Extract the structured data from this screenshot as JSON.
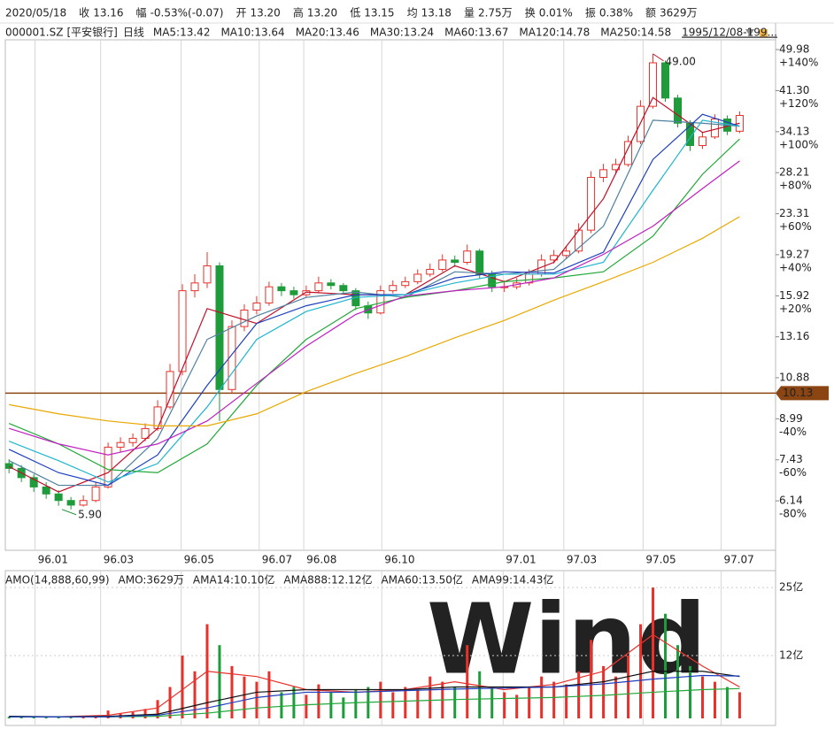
{
  "info_bar": [
    {
      "label": "2020/05/18"
    },
    {
      "label": "收",
      "value": "13.16",
      "color": "#138a2e"
    },
    {
      "label": "幅",
      "value": "-0.53%(-0.07)",
      "color": "#138a2e"
    },
    {
      "label": "开",
      "value": "13.20",
      "color": "#138a2e"
    },
    {
      "label": "高",
      "value": "13.20",
      "color": "#138a2e"
    },
    {
      "label": "低",
      "value": "13.15",
      "color": "#138a2e"
    },
    {
      "label": "均",
      "value": "13.18",
      "color": "#138a2e"
    },
    {
      "label": "量",
      "value": "2.75万",
      "color": "#222222"
    },
    {
      "label": "换",
      "value": "0.01%",
      "color": "#222222"
    },
    {
      "label": "振",
      "value": "0.38%",
      "color": "#222222"
    },
    {
      "label": "额",
      "value": "3629万",
      "color": "#222222"
    }
  ],
  "symbol": "000001.SZ",
  "security_name": "[平安银行]",
  "period": "日线",
  "date_range": "1995/12/08-199...",
  "chart_data": [
    {
      "type": "candlestick",
      "log_y": true,
      "xlim": [
        -0.3,
        61.9
      ],
      "ylim": [
        4.88,
        52.3
      ],
      "up_color": "#e8312b",
      "down_color": "#1e9b3a",
      "open": [
        7.3,
        7.14,
        6.84,
        6.55,
        6.34,
        6.15,
        6.02,
        6.15,
        6.55,
        7.88,
        8.05,
        8.21,
        8.59,
        9.5,
        11.2,
        16.3,
        16.9,
        18.3,
        10.3,
        13.8,
        14.9,
        15.4,
        16.6,
        16.3,
        16.0,
        16.3,
        16.9,
        16.7,
        16.3,
        15.2,
        14.7,
        16.3,
        16.7,
        17.0,
        17.6,
        18.0,
        18.8,
        18.6,
        19.6,
        17.6,
        16.6,
        16.6,
        16.9,
        17.6,
        18.8,
        19.2,
        19.6,
        21.6,
        27.6,
        28.6,
        29.3,
        32.6,
        38.4,
        47.0,
        39.9,
        35.5,
        32.0,
        33.3,
        36.2,
        34.2
      ],
      "high": [
        7.45,
        7.25,
        6.95,
        6.7,
        6.45,
        6.25,
        6.3,
        6.7,
        8.05,
        8.25,
        8.4,
        8.8,
        9.8,
        11.6,
        16.8,
        17.6,
        19.5,
        18.6,
        14.2,
        15.3,
        15.9,
        17.0,
        16.9,
        16.6,
        16.7,
        17.4,
        17.2,
        16.9,
        16.5,
        15.5,
        16.7,
        17.1,
        17.4,
        18.0,
        18.5,
        19.3,
        19.2,
        20.2,
        19.8,
        17.9,
        17.1,
        17.3,
        18.0,
        19.3,
        19.7,
        20.1,
        22.3,
        28.4,
        29.4,
        30.1,
        33.5,
        39.5,
        49.0,
        47.5,
        40.5,
        36.0,
        34.1,
        37.0,
        36.8,
        37.5
      ],
      "low": [
        6.98,
        6.7,
        6.4,
        6.2,
        6.0,
        5.9,
        5.98,
        6.1,
        6.5,
        7.7,
        7.9,
        8.1,
        8.5,
        9.4,
        11.0,
        15.8,
        16.5,
        8.9,
        10.1,
        13.5,
        14.6,
        15.2,
        15.9,
        15.7,
        15.8,
        16.1,
        16.4,
        16.0,
        14.9,
        14.3,
        14.6,
        16.1,
        16.5,
        16.8,
        17.4,
        17.8,
        18.2,
        18.4,
        17.2,
        16.2,
        16.2,
        16.4,
        16.7,
        17.4,
        18.5,
        18.9,
        19.4,
        21.3,
        27.0,
        28.0,
        29.0,
        32.2,
        38.0,
        39.2,
        34.8,
        31.2,
        31.5,
        33.0,
        33.6,
        33.9
      ],
      "close": [
        7.14,
        6.84,
        6.55,
        6.34,
        6.15,
        6.02,
        6.15,
        6.55,
        7.88,
        8.05,
        8.21,
        8.59,
        9.5,
        11.2,
        16.3,
        16.9,
        18.3,
        10.3,
        13.8,
        14.9,
        15.4,
        16.6,
        16.3,
        16.0,
        16.3,
        16.9,
        16.7,
        16.3,
        15.2,
        14.7,
        16.3,
        16.7,
        17.0,
        17.6,
        18.0,
        18.8,
        18.6,
        19.6,
        17.6,
        16.6,
        16.6,
        16.9,
        17.6,
        18.8,
        19.2,
        19.6,
        21.6,
        27.6,
        28.6,
        29.3,
        32.6,
        38.4,
        47.0,
        39.9,
        35.5,
        32.0,
        33.3,
        36.2,
        34.2,
        36.8
      ],
      "series": [
        {
          "name": "MA5:13.42",
          "color": "#c0102a",
          "x": [
            0,
            4,
            8,
            12,
            16,
            20,
            24,
            28,
            32,
            36,
            40,
            44,
            48,
            52,
            56,
            59
          ],
          "values": [
            7.2,
            6.4,
            7.0,
            8.6,
            15.0,
            14.0,
            16.2,
            16.0,
            16.0,
            18.3,
            17.0,
            18.6,
            25.0,
            40.0,
            34.0,
            35.5
          ]
        },
        {
          "name": "MA10:13.64",
          "color": "#4f7f9f",
          "x": [
            0,
            4,
            8,
            12,
            16,
            20,
            24,
            28,
            32,
            36,
            40,
            44,
            48,
            52,
            56,
            59
          ],
          "values": [
            7.4,
            6.6,
            6.6,
            8.2,
            13.0,
            14.5,
            15.8,
            16.2,
            15.8,
            17.8,
            17.6,
            18.0,
            22.0,
            36.0,
            35.5,
            35.0
          ]
        },
        {
          "name": "MA20:13.46",
          "color": "#1d3fbf",
          "x": [
            0,
            4,
            8,
            12,
            16,
            20,
            24,
            28,
            32,
            36,
            40,
            44,
            48,
            52,
            56,
            59
          ],
          "values": [
            7.8,
            7.0,
            6.6,
            7.6,
            10.5,
            14.0,
            15.2,
            16.0,
            16.0,
            17.3,
            17.8,
            17.7,
            19.5,
            30.0,
            37.0,
            35.0
          ]
        },
        {
          "name": "MA30:13.24",
          "color": "#1fb5cf",
          "x": [
            0,
            4,
            8,
            12,
            16,
            20,
            24,
            28,
            32,
            36,
            40,
            44,
            48,
            52,
            56,
            59
          ],
          "values": [
            8.1,
            7.4,
            6.7,
            7.3,
            9.5,
            13.0,
            14.8,
            15.8,
            16.0,
            16.9,
            17.6,
            17.6,
            18.6,
            26.0,
            36.0,
            35.0
          ]
        },
        {
          "name": "MA60:13.67",
          "color": "#22a83a",
          "x": [
            0,
            4,
            8,
            12,
            16,
            20,
            24,
            28,
            32,
            36,
            40,
            44,
            48,
            52,
            56,
            59
          ],
          "values": [
            8.8,
            8.0,
            7.1,
            7.0,
            8.0,
            10.5,
            13.0,
            15.0,
            15.8,
            16.3,
            17.0,
            17.3,
            17.8,
            21.0,
            28.0,
            33.0
          ]
        },
        {
          "name": "MA120:14.78",
          "color": "#c020c0",
          "x": [
            0,
            4,
            8,
            12,
            16,
            20,
            24,
            28,
            32,
            36,
            40,
            44,
            48,
            52,
            56,
            59
          ],
          "values": [
            8.6,
            8.0,
            7.6,
            8.0,
            8.9,
            10.6,
            12.6,
            14.6,
            15.9,
            16.3,
            16.6,
            17.3,
            19.3,
            22.0,
            26.2,
            29.8
          ]
        },
        {
          "name": "MA250:14.58",
          "color": "#e8a800",
          "x": [
            0,
            4,
            8,
            12,
            16,
            20,
            24,
            28,
            32,
            36,
            40,
            44,
            48,
            52,
            56,
            59
          ],
          "values": [
            9.6,
            9.2,
            8.9,
            8.7,
            8.7,
            9.2,
            10.2,
            11.1,
            12.0,
            13.1,
            14.2,
            15.6,
            17.0,
            18.6,
            20.8,
            23.0
          ]
        }
      ],
      "yticks": [
        {
          "value": 49.98,
          "label": "49.98"
        },
        {
          "value": 41.3,
          "label": "41.30"
        },
        {
          "value": 34.13,
          "label": "34.13"
        },
        {
          "value": 28.21,
          "label": "28.21"
        },
        {
          "value": 23.31,
          "label": "23.31"
        },
        {
          "value": 19.27,
          "label": "19.27"
        },
        {
          "value": 15.92,
          "label": "15.92"
        },
        {
          "value": 13.16,
          "label": "13.16"
        },
        {
          "value": 10.88,
          "label": "10.88"
        },
        {
          "value": 8.99,
          "label": "8.99"
        },
        {
          "value": 7.43,
          "label": "7.43"
        },
        {
          "value": 6.14,
          "label": "6.14"
        }
      ],
      "ytick_notes": [
        "+140%",
        "+120%",
        "+100%",
        "+80%",
        "+60%",
        "+40%",
        "+20%",
        null,
        null,
        "-40%",
        "-60%",
        "-80%"
      ],
      "xticks": [
        {
          "value": 2.1,
          "label": "96.01"
        },
        {
          "value": 7.4,
          "label": "96.03"
        },
        {
          "value": 13.9,
          "label": "96.05"
        },
        {
          "value": 20.2,
          "label": "96.07"
        },
        {
          "value": 23.8,
          "label": "96.08"
        },
        {
          "value": 30.1,
          "label": "96.10"
        },
        {
          "value": 39.9,
          "label": "97.01"
        },
        {
          "value": 44.8,
          "label": "97.03"
        },
        {
          "value": 51.2,
          "label": "97.05"
        },
        {
          "value": 57.5,
          "label": "97.07"
        }
      ],
      "high_mark": {
        "value": 49.0,
        "label": "49.00"
      },
      "low_mark": {
        "value": 5.9,
        "label": "5.90"
      },
      "price_line": {
        "value": 10.13,
        "color": "#8b4513"
      }
    },
    {
      "type": "bar",
      "title": "AMO(14,888,60,99)",
      "watermark": "Wind",
      "ylim": [
        0,
        27.9
      ],
      "yticks": [
        {
          "value": 25,
          "label": "25亿"
        },
        {
          "value": 12,
          "label": "12亿"
        }
      ],
      "series": [
        {
          "name": "AMO:3629万",
          "color": "#e8312b",
          "values": [
            0.3,
            0.2,
            0.3,
            0.2,
            0.3,
            0.4,
            0.5,
            0.6,
            1.5,
            1.0,
            1.2,
            1.8,
            3.5,
            6.0,
            12.0,
            9.0,
            18.0,
            14.0,
            10.0,
            8.0,
            7.0,
            9.0,
            5.0,
            6.0,
            4.5,
            6.5,
            5.0,
            4.0,
            5.5,
            6.0,
            7.0,
            5.0,
            6.0,
            5.5,
            8.0,
            7.0,
            6.0,
            14.0,
            9.0,
            6.0,
            5.0,
            4.5,
            6.0,
            8.0,
            7.0,
            6.5,
            9.0,
            15.0,
            10.0,
            8.0,
            12.0,
            18.0,
            25.0,
            20.0,
            14.0,
            10.0,
            8.0,
            7.0,
            6.0,
            5.0
          ]
        },
        {
          "name": "AMA14:10.10亿",
          "color": "#e8312b",
          "x": [
            0,
            4,
            8,
            12,
            16,
            20,
            24,
            28,
            32,
            36,
            40,
            44,
            48,
            52,
            56,
            59
          ],
          "values": [
            0.3,
            0.3,
            0.6,
            2.0,
            9.0,
            8.0,
            5.5,
            5.0,
            5.5,
            7.0,
            5.5,
            6.5,
            9.0,
            16.0,
            10.0,
            6.0
          ]
        },
        {
          "name": "AMA888:12.12亿",
          "color": "#22a83a",
          "x": [
            0,
            4,
            8,
            12,
            16,
            20,
            24,
            28,
            32,
            36,
            40,
            44,
            48,
            52,
            56,
            59
          ],
          "values": [
            0.3,
            0.3,
            0.3,
            0.4,
            1.0,
            2.0,
            2.6,
            3.0,
            3.3,
            3.6,
            3.8,
            4.0,
            4.4,
            5.0,
            5.5,
            5.7
          ]
        },
        {
          "name": "AMA60:13.50亿",
          "color": "#111111",
          "x": [
            0,
            4,
            8,
            12,
            16,
            20,
            24,
            28,
            32,
            36,
            40,
            44,
            48,
            52,
            56,
            59
          ],
          "values": [
            0.4,
            0.3,
            0.4,
            0.8,
            3.0,
            5.0,
            5.5,
            5.5,
            5.5,
            6.0,
            6.0,
            6.0,
            7.0,
            9.0,
            9.0,
            8.0
          ]
        },
        {
          "name": "AMA99:14.43亿",
          "color": "#1d3fbf",
          "x": [
            0,
            4,
            8,
            12,
            16,
            20,
            24,
            28,
            32,
            36,
            40,
            44,
            48,
            52,
            56,
            59
          ],
          "values": [
            0.3,
            0.3,
            0.3,
            0.6,
            2.0,
            4.0,
            5.0,
            5.0,
            5.3,
            5.6,
            5.8,
            6.0,
            6.6,
            7.5,
            8.2,
            8.1
          ]
        }
      ]
    }
  ]
}
